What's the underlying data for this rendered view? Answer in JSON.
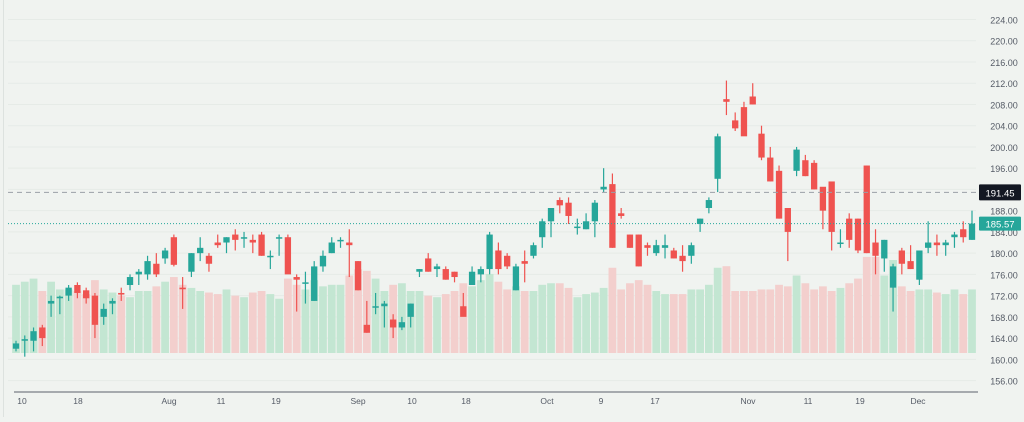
{
  "chart_data": {
    "type": "candlestick",
    "title": "",
    "xlabel": "",
    "ylabel": "",
    "ylim": [
      154,
      226
    ],
    "grid": true,
    "colors": {
      "up": "#26a69a",
      "down": "#ef5350",
      "up_volume": "#c3e6d2",
      "down_volume": "#f3cfcd",
      "background": "#f0f3f0",
      "last_price_bg": "#26a69a",
      "crosshair_label_bg": "#131722",
      "axis_text": "#555b66"
    },
    "y_ticks": [
      "224.00",
      "220.00",
      "216.00",
      "212.00",
      "208.00",
      "204.00",
      "200.00",
      "196.00",
      "192.00",
      "188.00",
      "184.00",
      "180.00",
      "176.00",
      "172.00",
      "168.00",
      "164.00",
      "160.00",
      "156.00"
    ],
    "x_ticks": [
      {
        "label": "10",
        "x": 22
      },
      {
        "label": "18",
        "x": 78
      },
      {
        "label": "Aug",
        "x": 169
      },
      {
        "label": "11",
        "x": 221
      },
      {
        "label": "19",
        "x": 276
      },
      {
        "label": "Sep",
        "x": 358
      },
      {
        "label": "10",
        "x": 412
      },
      {
        "label": "18",
        "x": 466
      },
      {
        "label": "Oct",
        "x": 547
      },
      {
        "label": "9",
        "x": 601
      },
      {
        "label": "17",
        "x": 655
      },
      {
        "label": "Nov",
        "x": 748
      },
      {
        "label": "11",
        "x": 808
      },
      {
        "label": "19",
        "x": 860
      },
      {
        "label": "Dec",
        "x": 918
      }
    ],
    "crosshair_price": "191.45",
    "last_price": "185.57",
    "candles": [
      [
        162.0,
        163.5,
        161.5,
        163.0,
        0.44
      ],
      [
        163.5,
        164.5,
        160.5,
        163.8,
        0.46
      ],
      [
        163.5,
        166.0,
        161.5,
        165.3,
        0.48
      ],
      [
        166.0,
        166.5,
        162.5,
        164.0,
        0.4
      ],
      [
        170.5,
        172.0,
        168.0,
        171.0,
        0.46
      ],
      [
        171.5,
        172.0,
        168.5,
        171.8,
        0.41
      ],
      [
        172.0,
        174.0,
        171.0,
        173.5,
        0.41
      ],
      [
        174.0,
        174.5,
        171.5,
        172.5,
        0.4
      ],
      [
        173.0,
        173.5,
        170.5,
        171.5,
        0.38
      ],
      [
        172.0,
        172.5,
        164.0,
        166.5,
        0.47
      ],
      [
        168.0,
        170.5,
        166.5,
        169.5,
        0.41
      ],
      [
        170.5,
        171.5,
        168.5,
        171.0,
        0.39
      ],
      [
        172.5,
        173.5,
        171.0,
        172.2,
        0.37
      ],
      [
        174.0,
        176.0,
        173.0,
        175.5,
        0.36
      ],
      [
        176.0,
        177.0,
        174.0,
        176.5,
        0.4
      ],
      [
        176.0,
        179.5,
        175.0,
        178.5,
        0.4
      ],
      [
        178.0,
        180.0,
        175.5,
        176.0,
        0.43
      ],
      [
        179.0,
        181.0,
        178.0,
        180.5,
        0.46
      ],
      [
        183.0,
        183.5,
        177.5,
        177.8,
        0.49
      ],
      [
        173.5,
        175.5,
        169.5,
        173.2,
        0.44
      ],
      [
        176.5,
        180.0,
        175.5,
        180.0,
        0.42
      ],
      [
        180.0,
        183.0,
        178.5,
        181.0,
        0.4
      ],
      [
        179.5,
        180.0,
        176.5,
        178.0,
        0.39
      ],
      [
        182.0,
        183.5,
        181.0,
        181.5,
        0.38
      ],
      [
        182.0,
        183.0,
        180.0,
        183.0,
        0.41
      ],
      [
        183.5,
        184.5,
        180.5,
        182.5,
        0.37
      ],
      [
        183.0,
        184.0,
        181.0,
        183.0,
        0.36
      ],
      [
        182.5,
        183.5,
        180.0,
        182.0,
        0.39
      ],
      [
        183.5,
        184.0,
        179.5,
        179.5,
        0.4
      ],
      [
        179.5,
        180.5,
        177.0,
        179.5,
        0.38
      ],
      [
        183.0,
        183.5,
        179.5,
        183.0,
        0.35
      ],
      [
        183.0,
        183.5,
        176.5,
        176.0,
        0.48
      ],
      [
        175.5,
        176.0,
        169.0,
        175.0,
        0.44
      ],
      [
        174.5,
        176.5,
        170.5,
        174.5,
        0.41
      ],
      [
        171.0,
        178.5,
        171.0,
        177.5,
        0.47
      ],
      [
        177.5,
        180.5,
        176.5,
        179.5,
        0.43
      ],
      [
        180.0,
        183.0,
        180.0,
        182.0,
        0.44
      ],
      [
        182.5,
        183.0,
        181.0,
        182.5,
        0.44
      ],
      [
        182.0,
        184.5,
        175.5,
        181.5,
        0.5
      ],
      [
        178.5,
        178.5,
        173.0,
        173.0,
        0.54
      ],
      [
        166.5,
        171.0,
        165.0,
        165.0,
        0.53
      ],
      [
        170.0,
        172.5,
        168.5,
        170.0,
        0.48
      ],
      [
        170.0,
        171.0,
        166.0,
        170.5,
        0.4
      ],
      [
        167.5,
        168.5,
        164.0,
        166.0,
        0.44
      ],
      [
        166.0,
        168.0,
        165.5,
        167.0,
        0.45
      ],
      [
        168.0,
        170.5,
        166.0,
        170.5,
        0.4
      ],
      [
        176.5,
        177.0,
        175.5,
        177.0,
        0.4
      ],
      [
        179.0,
        180.0,
        176.5,
        176.5,
        0.37
      ],
      [
        177.0,
        178.0,
        175.5,
        177.5,
        0.36
      ],
      [
        177.0,
        177.5,
        175.0,
        175.0,
        0.38
      ],
      [
        176.5,
        176.5,
        174.5,
        175.5,
        0.4
      ],
      [
        170.0,
        172.5,
        168.5,
        168.0,
        0.45
      ],
      [
        174.0,
        177.5,
        174.0,
        176.5,
        0.43
      ],
      [
        176.0,
        177.5,
        174.5,
        177.0,
        0.47
      ],
      [
        177.0,
        184.0,
        176.0,
        183.5,
        0.51
      ],
      [
        180.5,
        182.0,
        176.0,
        177.0,
        0.46
      ],
      [
        179.5,
        180.0,
        177.0,
        177.5,
        0.41
      ],
      [
        173.0,
        178.0,
        173.0,
        177.5,
        0.43
      ],
      [
        178.5,
        180.5,
        174.5,
        178.0,
        0.4
      ],
      [
        179.5,
        182.0,
        179.0,
        181.5,
        0.4
      ],
      [
        183.0,
        186.5,
        181.0,
        186.0,
        0.44
      ],
      [
        186.0,
        188.5,
        183.0,
        188.5,
        0.45
      ],
      [
        190.0,
        190.5,
        187.5,
        189.0,
        0.45
      ],
      [
        189.5,
        190.5,
        185.5,
        187.0,
        0.42
      ],
      [
        185.0,
        186.5,
        183.5,
        185.0,
        0.36
      ],
      [
        184.5,
        187.5,
        184.5,
        186.0,
        0.38
      ],
      [
        186.0,
        190.0,
        183.0,
        189.5,
        0.39
      ],
      [
        192.0,
        196.0,
        191.5,
        192.5,
        0.42
      ],
      [
        193.0,
        195.0,
        181.0,
        181.0,
        0.55
      ],
      [
        187.5,
        188.5,
        186.5,
        187.0,
        0.41
      ],
      [
        183.5,
        183.5,
        181.0,
        181.0,
        0.45
      ],
      [
        183.5,
        183.5,
        177.5,
        177.5,
        0.47
      ],
      [
        181.5,
        182.0,
        179.5,
        181.0,
        0.44
      ],
      [
        180.0,
        182.5,
        179.5,
        181.5,
        0.4
      ],
      [
        181.0,
        183.5,
        179.0,
        181.5,
        0.38
      ],
      [
        180.5,
        181.0,
        179.0,
        179.0,
        0.38
      ],
      [
        179.5,
        181.5,
        176.5,
        178.5,
        0.38
      ],
      [
        179.5,
        182.0,
        178.0,
        181.5,
        0.41
      ],
      [
        185.5,
        186.5,
        184.0,
        186.5,
        0.41
      ],
      [
        188.5,
        190.5,
        187.5,
        190.0,
        0.44
      ],
      [
        194.0,
        202.5,
        191.5,
        202.0,
        0.55
      ],
      [
        209.0,
        212.5,
        206.0,
        208.5,
        0.56
      ],
      [
        205.0,
        206.5,
        203.0,
        203.5,
        0.4
      ],
      [
        207.5,
        208.5,
        203.5,
        202.0,
        0.4
      ],
      [
        209.5,
        212.0,
        208.0,
        208.0,
        0.4
      ],
      [
        202.5,
        204.0,
        197.5,
        198.0,
        0.41
      ],
      [
        198.0,
        200.0,
        193.5,
        193.5,
        0.41
      ],
      [
        195.5,
        196.5,
        186.5,
        186.5,
        0.44
      ],
      [
        188.5,
        188.5,
        178.5,
        184.0,
        0.43
      ],
      [
        195.5,
        200.0,
        194.5,
        199.5,
        0.5
      ],
      [
        197.5,
        198.5,
        194.5,
        194.5,
        0.45
      ],
      [
        197.0,
        197.5,
        192.0,
        192.0,
        0.41
      ],
      [
        192.5,
        192.0,
        184.5,
        188.0,
        0.43
      ],
      [
        193.5,
        193.0,
        180.5,
        184.0,
        0.4
      ],
      [
        182.0,
        184.5,
        181.0,
        182.0,
        0.42
      ],
      [
        186.5,
        187.5,
        181.0,
        182.5,
        0.45
      ],
      [
        186.5,
        186.5,
        180.0,
        180.5,
        0.48
      ],
      [
        196.5,
        196.5,
        180.0,
        180.0,
        0.62
      ],
      [
        182.0,
        184.5,
        176.0,
        179.5,
        0.62
      ],
      [
        179.0,
        182.5,
        176.5,
        182.5,
        0.5
      ],
      [
        173.5,
        178.0,
        169.0,
        177.5,
        0.6
      ],
      [
        180.5,
        181.0,
        176.0,
        178.0,
        0.43
      ],
      [
        178.5,
        181.5,
        177.0,
        177.0,
        0.4
      ],
      [
        175.0,
        180.5,
        174.0,
        180.5,
        0.41
      ],
      [
        181.0,
        186.0,
        180.0,
        182.0,
        0.41
      ],
      [
        182.0,
        183.5,
        179.5,
        181.5,
        0.39
      ],
      [
        181.5,
        182.5,
        179.5,
        182.0,
        0.38
      ],
      [
        183.0,
        184.0,
        181.0,
        183.5,
        0.41
      ],
      [
        184.5,
        186.0,
        182.0,
        183.0,
        0.38
      ],
      [
        182.5,
        188.0,
        182.5,
        185.57,
        0.41
      ]
    ]
  }
}
